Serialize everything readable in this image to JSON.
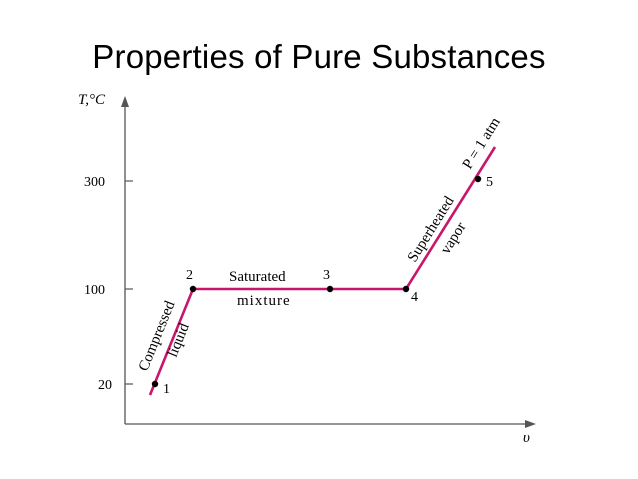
{
  "title": "Properties of Pure Substances",
  "axes": {
    "y_label": "T,°C",
    "x_label": "υ",
    "y_ticks": [
      "300",
      "100",
      "20"
    ]
  },
  "points": [
    "1",
    "2",
    "3",
    "4",
    "5"
  ],
  "labels": {
    "compressed": "Compressed",
    "liquid": "liquid",
    "saturated": "Saturated",
    "mixture": "mixture",
    "superheated": "Superheated",
    "vapor": "vapor",
    "pressure": "P = 1 atm"
  },
  "colors": {
    "process_line": "#c8176b",
    "axis": "#555555"
  }
}
